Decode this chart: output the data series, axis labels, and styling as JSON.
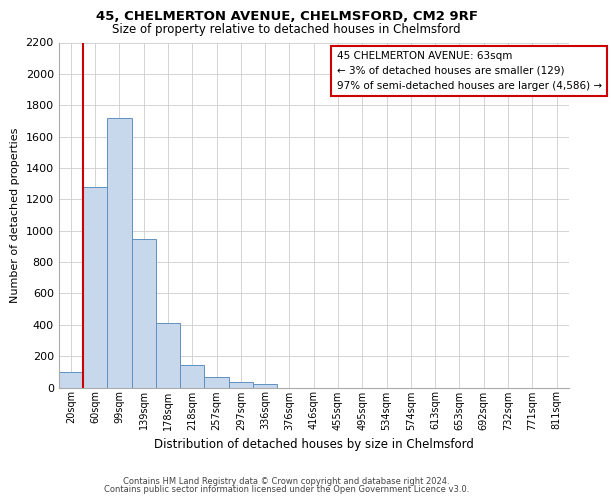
{
  "title_line1": "45, CHELMERTON AVENUE, CHELMSFORD, CM2 9RF",
  "title_line2": "Size of property relative to detached houses in Chelmsford",
  "xlabel": "Distribution of detached houses by size in Chelmsford",
  "ylabel": "Number of detached properties",
  "footnote1": "Contains HM Land Registry data © Crown copyright and database right 2024.",
  "footnote2": "Contains public sector information licensed under the Open Government Licence v3.0.",
  "annotation_title": "45 CHELMERTON AVENUE: 63sqm",
  "annotation_line2": "← 3% of detached houses are smaller (129)",
  "annotation_line3": "97% of semi-detached houses are larger (4,586) →",
  "bar_labels": [
    "20sqm",
    "60sqm",
    "99sqm",
    "139sqm",
    "178sqm",
    "218sqm",
    "257sqm",
    "297sqm",
    "336sqm",
    "376sqm",
    "416sqm",
    "455sqm",
    "495sqm",
    "534sqm",
    "574sqm",
    "613sqm",
    "653sqm",
    "692sqm",
    "732sqm",
    "771sqm",
    "811sqm"
  ],
  "bar_values": [
    100,
    1280,
    1720,
    950,
    410,
    145,
    65,
    35,
    25,
    0,
    0,
    0,
    0,
    0,
    0,
    0,
    0,
    0,
    0,
    0,
    0
  ],
  "bar_color": "#c8d8ec",
  "bar_edge_color": "#6090c0",
  "highlight_color": "#cc0000",
  "red_line_x": 0.5,
  "ylim": [
    0,
    2200
  ],
  "yticks": [
    0,
    200,
    400,
    600,
    800,
    1000,
    1200,
    1400,
    1600,
    1800,
    2000,
    2200
  ],
  "grid_color": "#cccccc",
  "background_color": "#ffffff"
}
